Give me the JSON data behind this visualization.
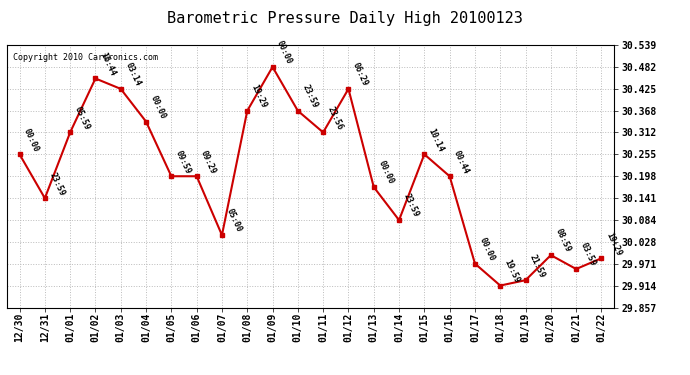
{
  "title": "Barometric Pressure Daily High 20100123",
  "copyright": "Copyright 2010 Cartronics.com",
  "x_labels": [
    "12/30",
    "12/31",
    "01/01",
    "01/02",
    "01/03",
    "01/04",
    "01/05",
    "01/06",
    "01/07",
    "01/08",
    "01/09",
    "01/10",
    "01/11",
    "01/12",
    "01/13",
    "01/14",
    "01/15",
    "01/16",
    "01/17",
    "01/18",
    "01/19",
    "01/20",
    "01/21",
    "01/22"
  ],
  "y_values": [
    30.255,
    30.141,
    30.312,
    30.452,
    30.425,
    30.34,
    30.198,
    30.198,
    30.045,
    30.368,
    30.482,
    30.368,
    30.312,
    30.425,
    30.17,
    30.084,
    30.255,
    30.198,
    29.971,
    29.914,
    29.928,
    29.993,
    29.957,
    29.985
  ],
  "point_labels": [
    "00:00",
    "23:59",
    "05:59",
    "16:44",
    "03:14",
    "00:00",
    "09:59",
    "09:29",
    "05:00",
    "19:29",
    "00:00",
    "23:59",
    "23:56",
    "06:29",
    "00:00",
    "23:59",
    "10:14",
    "00:44",
    "00:00",
    "19:59",
    "21:59",
    "08:59",
    "03:59",
    "19:29"
  ],
  "y_min": 29.857,
  "y_max": 30.539,
  "y_ticks": [
    29.857,
    29.914,
    29.971,
    30.028,
    30.084,
    30.141,
    30.198,
    30.255,
    30.312,
    30.368,
    30.425,
    30.482,
    30.539
  ],
  "line_color": "#cc0000",
  "marker_color": "#cc0000",
  "bg_color": "#ffffff",
  "grid_color": "#bbbbbb",
  "label_fontsize": 7.0,
  "title_fontsize": 11,
  "point_label_fontsize": 6.0
}
